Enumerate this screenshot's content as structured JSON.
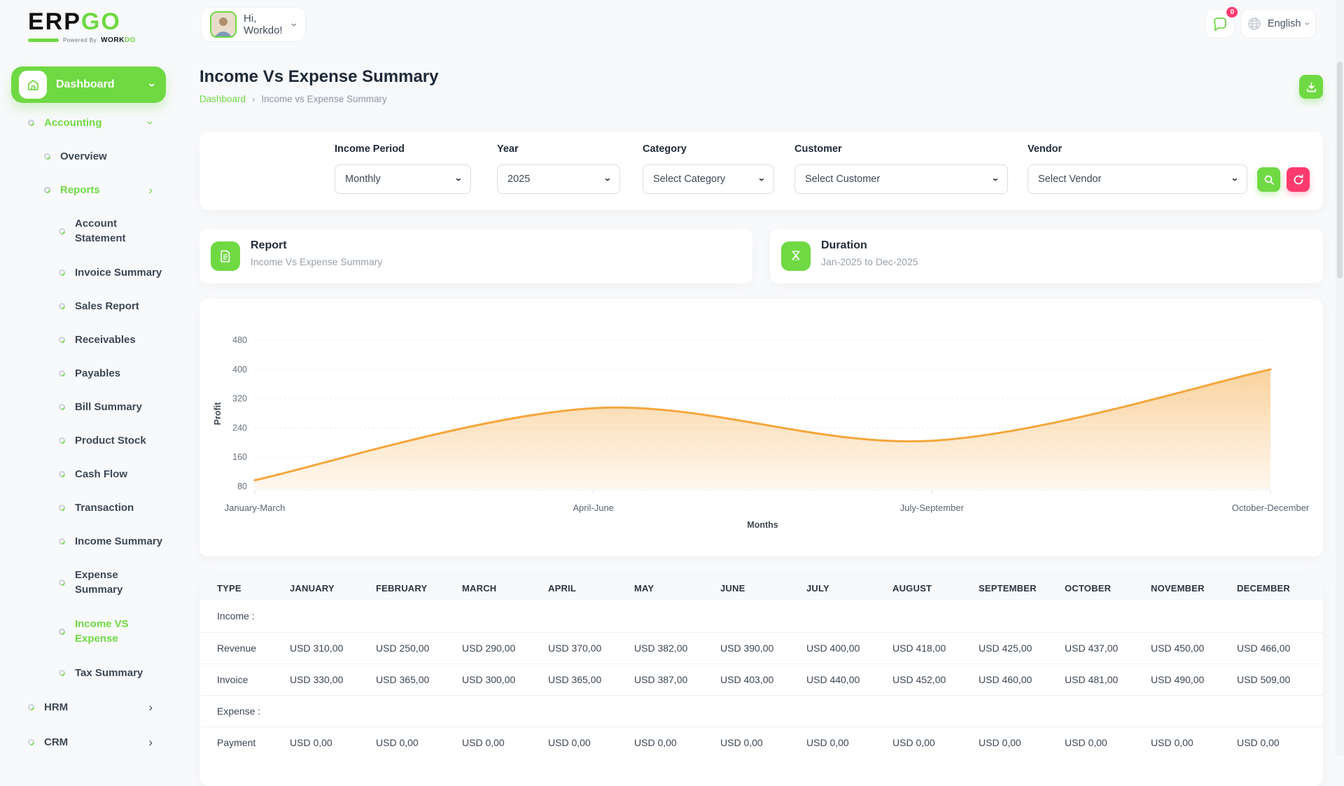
{
  "brand": {
    "name_black": "ERP",
    "name_green": "GO",
    "powered_prefix": "Powered By",
    "powered_brand_black": "WORK",
    "powered_brand_green": "DO"
  },
  "header": {
    "greeting": "Hi, Workdo!",
    "notification_count": "0",
    "language": "English"
  },
  "sidebar": {
    "dashboard": "Dashboard",
    "accounting": "Accounting",
    "overview": "Overview",
    "reports": "Reports",
    "report_items": {
      "0": "Account\nStatement",
      "1": "Invoice Summary",
      "2": "Sales Report",
      "3": "Receivables",
      "4": "Payables",
      "5": "Bill Summary",
      "6": "Product Stock",
      "7": "Cash Flow",
      "8": "Transaction",
      "9": "Income Summary",
      "10": "Expense\nSummary",
      "11": "Income VS\nExpense",
      "12": "Tax Summary"
    },
    "hrm": "HRM",
    "crm": "CRM"
  },
  "page": {
    "title": "Income Vs Expense Summary",
    "breadcrumb_home": "Dashboard",
    "breadcrumb_separator": "›",
    "breadcrumb_current": "Income vs Expense Summary"
  },
  "filters": {
    "income_period": {
      "label": "Income Period",
      "value": "Monthly"
    },
    "year": {
      "label": "Year",
      "value": "2025"
    },
    "category": {
      "label": "Category",
      "value": "Select Category"
    },
    "customer": {
      "label": "Customer",
      "value": "Select Customer"
    },
    "vendor": {
      "label": "Vendor",
      "value": "Select Vendor"
    }
  },
  "cards": {
    "report": {
      "title": "Report",
      "subtitle": "Income Vs Expense Summary"
    },
    "duration": {
      "title": "Duration",
      "subtitle": "Jan-2025 to Dec-2025"
    }
  },
  "chart_data": {
    "type": "area",
    "x": [
      "January-March",
      "April-June",
      "July-September",
      "October-December"
    ],
    "series": [
      {
        "name": "Profit",
        "values": [
          97,
          294,
          205,
          400
        ]
      }
    ],
    "xlabel": "Months",
    "ylabel": "Profit",
    "yticks": [
      480,
      400,
      320,
      240,
      160,
      80
    ],
    "ylim": [
      80,
      480
    ],
    "grid": "dashed-horizontal",
    "legend": "none",
    "line_color": "#f5a63c",
    "fill": "orange-gradient"
  },
  "table": {
    "headers": [
      "TYPE",
      "JANUARY",
      "FEBRUARY",
      "MARCH",
      "APRIL",
      "MAY",
      "JUNE",
      "JULY",
      "AUGUST",
      "SEPTEMBER",
      "OCTOBER",
      "NOVEMBER",
      "DECEMBER"
    ],
    "sections": [
      {
        "label": "Income :",
        "rows": [
          {
            "type": "Revenue",
            "values": [
              "USD 310,00",
              "USD 250,00",
              "USD 290,00",
              "USD 370,00",
              "USD 382,00",
              "USD 390,00",
              "USD 400,00",
              "USD 418,00",
              "USD 425,00",
              "USD 437,00",
              "USD 450,00",
              "USD 466,00"
            ]
          },
          {
            "type": "Invoice",
            "values": [
              "USD 330,00",
              "USD 365,00",
              "USD 300,00",
              "USD 365,00",
              "USD 387,00",
              "USD 403,00",
              "USD 440,00",
              "USD 452,00",
              "USD 460,00",
              "USD 481,00",
              "USD 490,00",
              "USD 509,00"
            ]
          }
        ]
      },
      {
        "label": "Expense :",
        "rows": [
          {
            "type": "Payment",
            "values": [
              "USD 0,00",
              "USD 0,00",
              "USD 0,00",
              "USD 0,00",
              "USD 0,00",
              "USD 0,00",
              "USD 0,00",
              "USD 0,00",
              "USD 0,00",
              "USD 0,00",
              "USD 0,00",
              "USD 0,00"
            ]
          }
        ]
      }
    ]
  },
  "colors": {
    "primary": "#6fd943",
    "pink": "#ff3a6e",
    "chart_orange": "#f5a63c"
  }
}
